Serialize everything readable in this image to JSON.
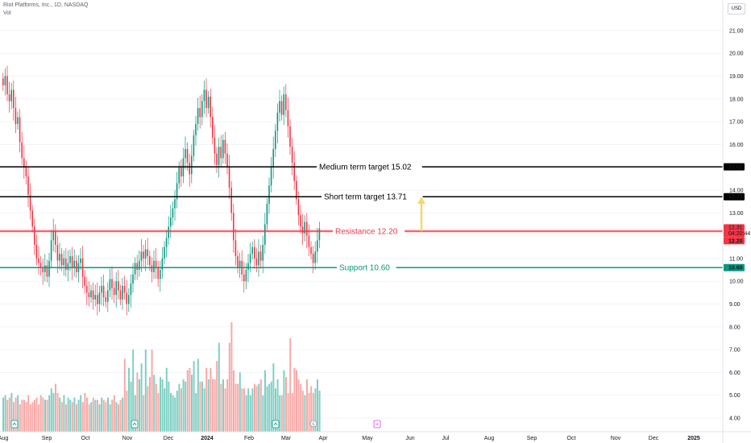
{
  "header": {
    "symbol": "Riot Platforms, Inc., 1D, NASDAQ",
    "volume_label": "Vol",
    "currency": "USD"
  },
  "chart_data": {
    "type": "candlestick",
    "price_axis": {
      "range": [
        3.7,
        22.2
      ],
      "ticks": [
        "4.00",
        "5.00",
        "6.00",
        "7.00",
        "8.00",
        "9.00",
        "10.00",
        "11.00",
        "12.00",
        "13.00",
        "14.00",
        "15.00",
        "16.00",
        "17.00",
        "18.00",
        "19.00",
        "20.00",
        "21.00"
      ]
    },
    "time_axis_labels": [
      "Aug",
      "Sep",
      "Oct",
      "Nov",
      "Dec",
      "2024",
      "Feb",
      "Mar",
      "Apr",
      "May",
      "Jun",
      "Jul",
      "Aug",
      "Sep",
      "Oct",
      "Nov",
      "Dec",
      "2025"
    ],
    "levels": [
      {
        "label": "Medium term target 15.02",
        "value": 15.02,
        "color": "#000000",
        "tag": "15.02"
      },
      {
        "label": "Short term target 13.71",
        "value": 13.71,
        "color": "#000000",
        "tag": "13.71"
      },
      {
        "label": "Resistance 12.20",
        "value": 12.2,
        "color": "#f23645",
        "tag": "12.20"
      },
      {
        "label": "Support 10.60",
        "value": 10.6,
        "color": "#089981",
        "tag": "10.60"
      }
    ],
    "last_price": {
      "value": 12.31,
      "label": "12.31",
      "countdown": "04:20:44"
    },
    "closes": [
      18.6,
      19.0,
      18.2,
      17.9,
      18.4,
      17.6,
      16.9,
      17.2,
      16.1,
      15.4,
      15.0,
      14.6,
      13.8,
      13.1,
      12.4,
      11.6,
      11.0,
      10.8,
      10.6,
      10.4,
      10.7,
      10.2,
      10.9,
      11.8,
      12.2,
      11.6,
      10.9,
      11.2,
      10.7,
      11.0,
      10.5,
      10.8,
      11.1,
      10.6,
      10.9,
      10.4,
      10.8,
      11.0,
      10.2,
      9.8,
      9.5,
      9.3,
      9.6,
      9.2,
      9.4,
      9.0,
      9.5,
      9.8,
      9.3,
      9.1,
      9.6,
      10.1,
      9.7,
      9.4,
      10.0,
      9.6,
      9.2,
      9.8,
      9.5,
      9.0,
      9.4,
      9.9,
      10.3,
      10.8,
      10.5,
      10.9,
      11.3,
      11.0,
      11.4,
      11.1,
      10.7,
      10.4,
      10.9,
      10.6,
      10.1,
      10.5,
      11.0,
      11.5,
      11.9,
      12.4,
      12.8,
      13.2,
      13.6,
      14.3,
      15.0,
      14.6,
      15.4,
      15.8,
      15.2,
      14.7,
      15.5,
      16.4,
      16.9,
      17.6,
      17.2,
      17.9,
      18.4,
      17.6,
      18.1,
      17.2,
      16.3,
      15.6,
      15.1,
      15.9,
      15.4,
      16.2,
      15.6,
      15.0,
      14.1,
      13.0,
      11.8,
      11.1,
      10.6,
      10.9,
      10.3,
      10.0,
      10.5,
      10.8,
      11.2,
      11.5,
      11.0,
      10.7,
      11.3,
      10.9,
      11.6,
      12.5,
      13.4,
      14.2,
      15.0,
      15.8,
      16.6,
      17.4,
      17.9,
      17.3,
      18.2,
      17.5,
      16.8,
      15.9,
      15.2,
      14.4,
      13.6,
      12.9,
      12.4,
      12.1,
      12.6,
      12.0,
      11.5,
      11.2,
      10.8,
      11.3,
      11.8,
      12.31
    ],
    "volumes": [
      4.9,
      5.0,
      4.8,
      4.9,
      5.1,
      4.7,
      4.9,
      5.0,
      4.6,
      4.8,
      4.8,
      4.7,
      5.0,
      4.6,
      4.7,
      4.8,
      4.9,
      4.6,
      5.0,
      4.9,
      4.8,
      4.8,
      5.0,
      5.3,
      5.1,
      5.5,
      5.1,
      4.9,
      4.7,
      5.0,
      4.6,
      4.9,
      4.8,
      4.7,
      4.9,
      4.6,
      4.8,
      5.0,
      4.7,
      5.1,
      4.9,
      4.6,
      4.7,
      4.9,
      4.8,
      4.8,
      4.6,
      4.9,
      4.8,
      4.7,
      4.9,
      4.6,
      4.8,
      5.0,
      4.7,
      4.6,
      4.8,
      4.9,
      6.6,
      5.2,
      6.2,
      5.6,
      7.0,
      5.0,
      6.0,
      5.7,
      6.4,
      5.0,
      7.0,
      5.4,
      5.8,
      7.0,
      5.9,
      5.5,
      5.1,
      5.8,
      5.7,
      5.3,
      6.2,
      5.6,
      5.1,
      5.0,
      4.9,
      5.2,
      5.5,
      5.3,
      5.7,
      5.6,
      6.1,
      6.2,
      5.9,
      6.5,
      5.1,
      6.6,
      5.6,
      5.6,
      5.3,
      6.2,
      5.7,
      6.2,
      5.7,
      5.7,
      6.5,
      7.3,
      5.5,
      5.7,
      5.3,
      5.7,
      7.3,
      8.2,
      6.1,
      5.5,
      5.5,
      6.0,
      5.3,
      5.3,
      5.0,
      5.3,
      5.0,
      5.3,
      5.5,
      5.4,
      5.5,
      5.7,
      5.0,
      6.1,
      5.4,
      5.5,
      5.6,
      6.4,
      5.3,
      5.7,
      5.0,
      5.0,
      6.1,
      5.8,
      5.1,
      7.5,
      5.1,
      6.2,
      6.1,
      5.7,
      5.5,
      5.2,
      5.0,
      5.7,
      5.1,
      5.4,
      5.1,
      5.3,
      5.7,
      5.2
    ]
  }
}
